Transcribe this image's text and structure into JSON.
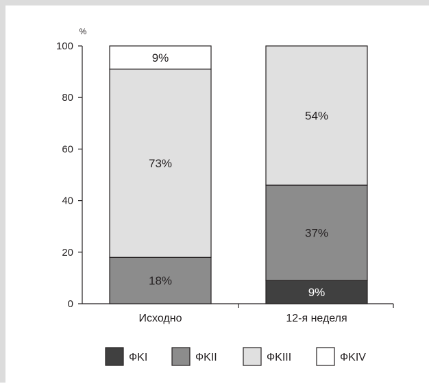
{
  "chart_data": {
    "type": "bar",
    "stacked": true,
    "y_unit": "%",
    "ylim": [
      0,
      100
    ],
    "yticks": [
      0,
      20,
      40,
      60,
      80,
      100
    ],
    "grid": false,
    "legend_position": "bottom",
    "categories": [
      "Исходно",
      "12-я неделя"
    ],
    "series": [
      {
        "name": "ФKI",
        "color": "#404040",
        "values": [
          0,
          9
        ],
        "labels": [
          "",
          "9%"
        ]
      },
      {
        "name": "ФKII",
        "color": "#8c8c8c",
        "values": [
          18,
          37
        ],
        "labels": [
          "18%",
          "37%"
        ]
      },
      {
        "name": "ФKIII",
        "color": "#e0e0e0",
        "values": [
          73,
          54
        ],
        "labels": [
          "73%",
          "54%"
        ]
      },
      {
        "name": "ФKIV",
        "color": "#ffffff",
        "values": [
          9,
          0
        ],
        "labels": [
          "9%",
          ""
        ]
      }
    ]
  }
}
